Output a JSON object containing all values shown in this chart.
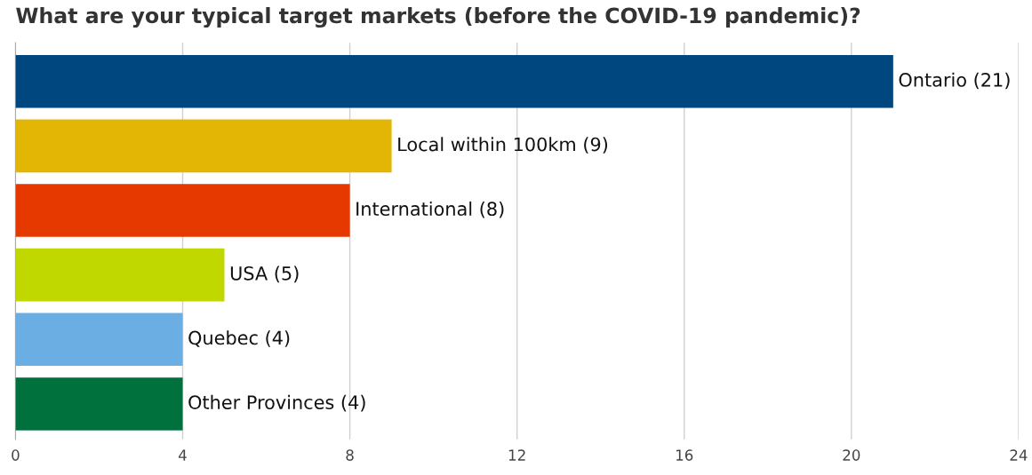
{
  "chart_data": {
    "type": "bar",
    "orientation": "horizontal",
    "title": "What are your typical target markets (before the COVID-19 pandemic)?",
    "categories": [
      null,
      null,
      null,
      null,
      null,
      null
    ],
    "values": [
      21,
      9,
      8,
      5,
      4,
      4
    ],
    "value_labels": [
      "Ontario (21)",
      "Local within 100km (9)",
      "International (8)",
      "USA (5)",
      "Quebec (4)",
      "Other Provinces (4)"
    ],
    "colors": [
      "#00467f",
      "#e3b505",
      "#e63900",
      "#c0d800",
      "#6aaee3",
      "#00703c"
    ],
    "xlim": [
      0,
      24
    ],
    "xticks": [
      0,
      4,
      8,
      12,
      16,
      20,
      24
    ],
    "grid": "x",
    "legend": false
  }
}
